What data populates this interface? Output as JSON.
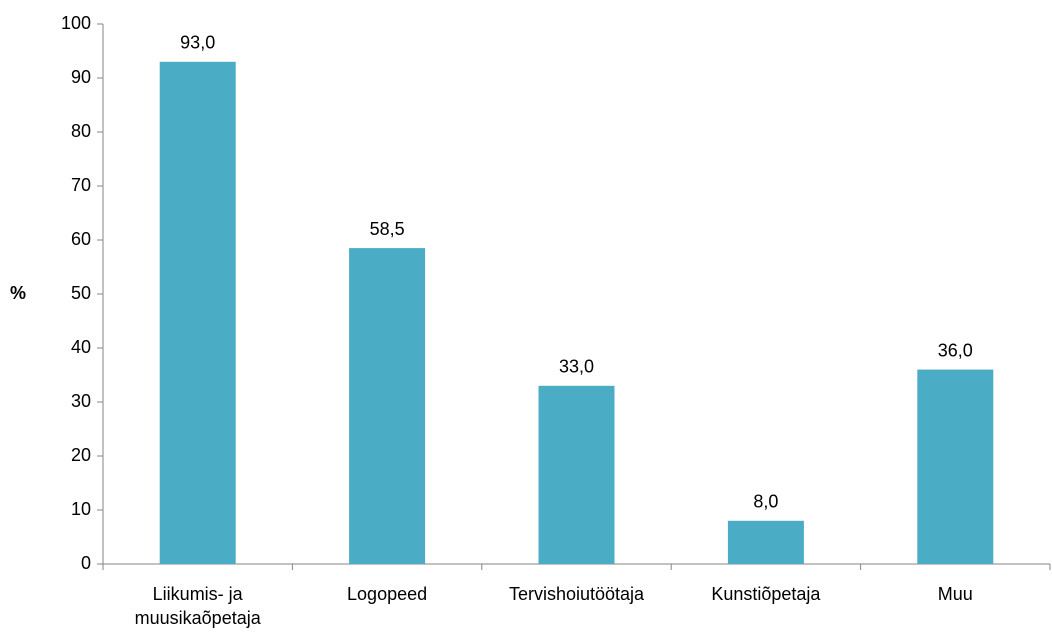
{
  "chart_data": {
    "type": "bar",
    "y_label": "%",
    "categories": [
      "Liikumis- ja muusikaõpetaja",
      "Logopeed",
      "Tervishoiutöötaja",
      "Kunstiõpetaja",
      "Muu"
    ],
    "values": [
      93.0,
      58.5,
      33.0,
      8.0,
      36.0
    ],
    "value_labels": [
      "93,0",
      "58,5",
      "33,0",
      "8,0",
      "36,0"
    ],
    "color": "#4bacc6",
    "ylim": [
      0,
      100
    ],
    "yticks": [
      0,
      10,
      20,
      30,
      40,
      50,
      60,
      70,
      80,
      90,
      100
    ],
    "grid": false
  }
}
